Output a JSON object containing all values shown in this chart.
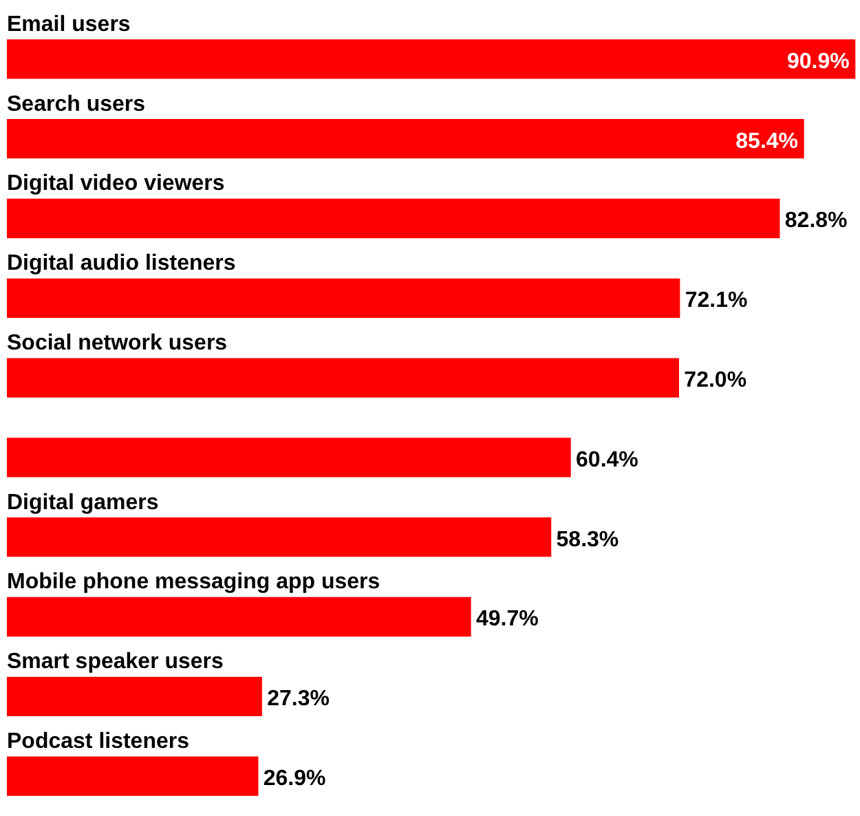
{
  "chart_data": {
    "type": "bar",
    "orientation": "horizontal",
    "categories": [
      "Email users",
      "Search users",
      "Digital video viewers",
      "Digital audio listeners",
      "Social network users",
      null,
      "Digital gamers",
      "Mobile phone messaging app users",
      "Smart speaker users",
      "Podcast listeners"
    ],
    "values": [
      90.9,
      85.4,
      82.8,
      72.1,
      72.0,
      60.4,
      58.3,
      49.7,
      27.3,
      26.9
    ],
    "value_labels": [
      "90.9%",
      "85.4%",
      "82.8%",
      "72.1%",
      "72.0%",
      "60.4%",
      "58.3%",
      "49.7%",
      "27.3%",
      "26.9%"
    ],
    "color": "#ff0000",
    "xlim": [
      0,
      91
    ]
  }
}
